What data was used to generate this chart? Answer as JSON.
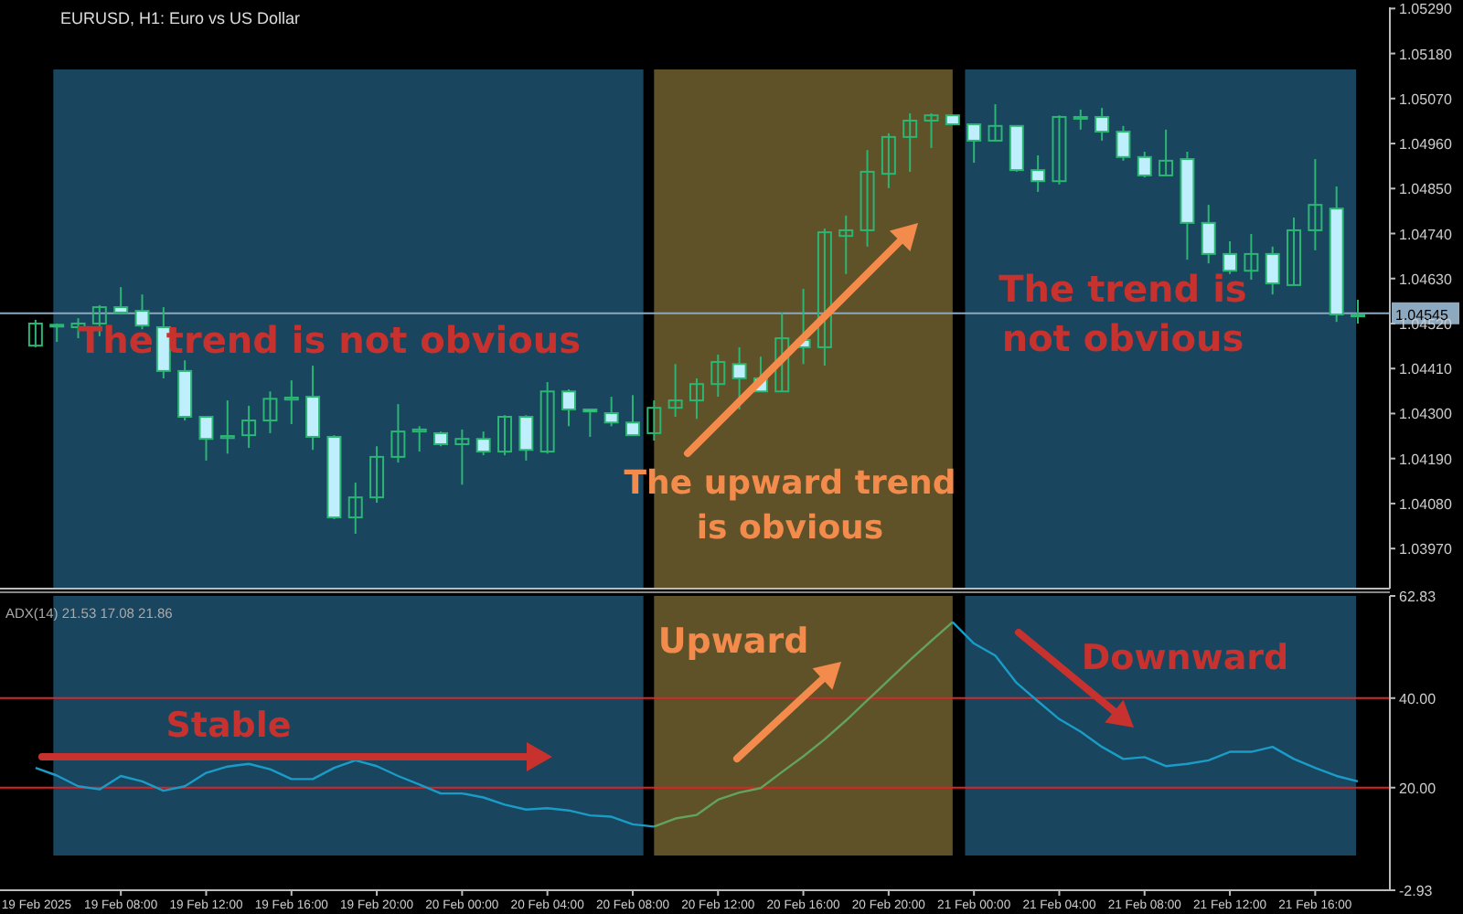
{
  "chart_data": [
    {
      "type": "candlestick",
      "title": "EURUSD, H1: Euro vs US Dollar",
      "color": "#2bb673",
      "x": [
        "2025-02-19T04:00",
        "2025-02-19T05:00",
        "2025-02-19T06:00",
        "2025-02-19T07:00",
        "2025-02-19T08:00",
        "2025-02-19T09:00",
        "2025-02-19T10:00",
        "2025-02-19T11:00",
        "2025-02-19T12:00",
        "2025-02-19T13:00",
        "2025-02-19T14:00",
        "2025-02-19T15:00",
        "2025-02-19T16:00",
        "2025-02-19T17:00",
        "2025-02-19T18:00",
        "2025-02-19T19:00",
        "2025-02-19T20:00",
        "2025-02-19T21:00",
        "2025-02-19T22:00",
        "2025-02-19T23:00",
        "2025-02-20T00:00",
        "2025-02-20T01:00",
        "2025-02-20T02:00",
        "2025-02-20T03:00",
        "2025-02-20T04:00",
        "2025-02-20T05:00",
        "2025-02-20T06:00",
        "2025-02-20T07:00",
        "2025-02-20T08:00",
        "2025-02-20T09:00",
        "2025-02-20T10:00",
        "2025-02-20T11:00",
        "2025-02-20T12:00",
        "2025-02-20T13:00",
        "2025-02-20T14:00",
        "2025-02-20T15:00",
        "2025-02-20T16:00",
        "2025-02-20T17:00",
        "2025-02-20T18:00",
        "2025-02-20T19:00",
        "2025-02-20T20:00",
        "2025-02-20T21:00",
        "2025-02-20T22:00",
        "2025-02-20T23:00",
        "2025-02-21T00:00",
        "2025-02-21T01:00",
        "2025-02-21T02:00",
        "2025-02-21T03:00",
        "2025-02-21T04:00",
        "2025-02-21T05:00",
        "2025-02-21T06:00",
        "2025-02-21T07:00",
        "2025-02-21T08:00",
        "2025-02-21T09:00",
        "2025-02-21T10:00",
        "2025-02-21T11:00",
        "2025-02-21T12:00",
        "2025-02-21T13:00",
        "2025-02-21T14:00",
        "2025-02-21T15:00",
        "2025-02-21T16:00",
        "2025-02-21T17:00",
        "2025-02-21T18:00"
      ],
      "ohlc": [
        [
          1.04466,
          1.04529,
          1.04462,
          1.0452
        ],
        [
          1.04515,
          1.0452,
          1.04475,
          1.04517
        ],
        [
          1.04511,
          1.04533,
          1.04484,
          1.0452
        ],
        [
          1.0452,
          1.04565,
          1.04489,
          1.0456
        ],
        [
          1.0456,
          1.04609,
          1.04542,
          1.04547
        ],
        [
          1.04551,
          1.04591,
          1.04506,
          1.04515
        ],
        [
          1.04511,
          1.0456,
          1.04386,
          1.04404
        ],
        [
          1.04404,
          1.0443,
          1.04283,
          1.04292
        ],
        [
          1.04292,
          1.04292,
          1.04185,
          1.04238
        ],
        [
          1.0424,
          1.04332,
          1.04202,
          1.04245
        ],
        [
          1.04247,
          1.04319,
          1.04216,
          1.04283
        ],
        [
          1.04283,
          1.04354,
          1.04252,
          1.04336
        ],
        [
          1.04334,
          1.04381,
          1.04274,
          1.04339
        ],
        [
          1.04341,
          1.04417,
          1.04211,
          1.04243
        ],
        [
          1.04243,
          1.04247,
          1.04042,
          1.04046
        ],
        [
          1.04046,
          1.04131,
          1.04006,
          1.04095
        ],
        [
          1.04095,
          1.0422,
          1.04082,
          1.04194
        ],
        [
          1.04194,
          1.04323,
          1.0418,
          1.04256
        ],
        [
          1.04256,
          1.04269,
          1.04207,
          1.04261
        ],
        [
          1.04252,
          1.04256,
          1.0422,
          1.04225
        ],
        [
          1.04225,
          1.04261,
          1.04126,
          1.04238
        ],
        [
          1.04238,
          1.04256,
          1.04198,
          1.04207
        ],
        [
          1.04207,
          1.04296,
          1.04198,
          1.04292
        ],
        [
          1.04292,
          1.04296,
          1.04185,
          1.04211
        ],
        [
          1.04207,
          1.04377,
          1.04202,
          1.04354
        ],
        [
          1.04354,
          1.04359,
          1.04269,
          1.0431
        ],
        [
          1.0431,
          1.0431,
          1.04243,
          1.04305
        ],
        [
          1.04301,
          1.04341,
          1.04269,
          1.04278
        ],
        [
          1.04278,
          1.04345,
          1.04247,
          1.04247
        ],
        [
          1.04252,
          1.04332,
          1.04234,
          1.04314
        ],
        [
          1.04314,
          1.04421,
          1.04292,
          1.04332
        ],
        [
          1.04332,
          1.04386,
          1.04287,
          1.04372
        ],
        [
          1.04372,
          1.04444,
          1.04341,
          1.04426
        ],
        [
          1.04421,
          1.04462,
          1.0431,
          1.04386
        ],
        [
          1.04386,
          1.04439,
          1.04354,
          1.04354
        ],
        [
          1.04354,
          1.04547,
          1.04354,
          1.04484
        ],
        [
          1.0448,
          1.04605,
          1.04421,
          1.04462
        ],
        [
          1.04462,
          1.04752,
          1.04417,
          1.04743
        ],
        [
          1.04734,
          1.04784,
          1.04641,
          1.04748
        ],
        [
          1.04748,
          1.04944,
          1.04708,
          1.04891
        ],
        [
          1.04886,
          1.04985,
          1.04851,
          1.04976
        ],
        [
          1.04976,
          1.05034,
          1.04891,
          1.05016
        ],
        [
          1.05016,
          1.05034,
          1.04949,
          1.05029
        ],
        [
          1.05029,
          1.05029,
          1.05007,
          1.05007
        ],
        [
          1.05007,
          1.05007,
          1.04913,
          1.04967
        ],
        [
          1.04967,
          1.05056,
          1.04967,
          1.05003
        ],
        [
          1.05003,
          1.05003,
          1.04891,
          1.04895
        ],
        [
          1.04895,
          1.04931,
          1.04842,
          1.04868
        ],
        [
          1.04868,
          1.05029,
          1.0486,
          1.05025
        ],
        [
          1.05023,
          1.05043,
          1.04994,
          1.05025
        ],
        [
          1.05025,
          1.05047,
          1.04967,
          1.04989
        ],
        [
          1.04989,
          1.05003,
          1.04918,
          1.04927
        ],
        [
          1.04927,
          1.0494,
          1.04877,
          1.04882
        ],
        [
          1.04882,
          1.04994,
          1.04882,
          1.04918
        ],
        [
          1.04922,
          1.0494,
          1.04676,
          1.04766
        ],
        [
          1.04766,
          1.0481,
          1.04667,
          1.0469
        ],
        [
          1.0469,
          1.04721,
          1.04641,
          1.04649
        ],
        [
          1.04649,
          1.04739,
          1.04627,
          1.0469
        ],
        [
          1.0469,
          1.04708,
          1.04591,
          1.04618
        ],
        [
          1.04614,
          1.04779,
          1.04614,
          1.04748
        ],
        [
          1.04748,
          1.04922,
          1.04699,
          1.0481
        ],
        [
          1.04801,
          1.04855,
          1.04524,
          1.04542
        ],
        [
          1.0454,
          1.04578,
          1.0452,
          1.04542
        ]
      ],
      "xlim": [
        "2025-02-19T02:20",
        "2025-02-21T19:30"
      ],
      "ylim": [
        1.03872,
        1.05293
      ],
      "yticks": [
        {
          "value": 1.0529,
          "label": "1.05290"
        },
        {
          "value": 1.0518,
          "label": "1.05180"
        },
        {
          "value": 1.0507,
          "label": "1.05070"
        },
        {
          "value": 1.0496,
          "label": "1.04960"
        },
        {
          "value": 1.0485,
          "label": "1.04850"
        },
        {
          "value": 1.0474,
          "label": "1.04740"
        },
        {
          "value": 1.0463,
          "label": "1.04630"
        },
        {
          "value": 1.0452,
          "label": "1.04520"
        },
        {
          "value": 1.0441,
          "label": "1.04410"
        },
        {
          "value": 1.043,
          "label": "1.04300"
        },
        {
          "value": 1.0419,
          "label": "1.04190"
        },
        {
          "value": 1.0408,
          "label": "1.04080"
        },
        {
          "value": 1.0397,
          "label": "1.03970"
        }
      ],
      "tick_labels": "y",
      "grid": false,
      "ref_lines": [
        {
          "axis": "y",
          "value": 1.04545,
          "label": "1.04545",
          "color": "#8da9bf"
        }
      ],
      "bands": [
        {
          "axis": "x",
          "from": "2025-02-19T04:50",
          "to": "2025-02-20T08:30",
          "color": "#19455f"
        },
        {
          "axis": "x",
          "from": "2025-02-20T09:00",
          "to": "2025-02-20T23:00",
          "color": "#5f5229"
        },
        {
          "axis": "x",
          "from": "2025-02-20T23:35",
          "to": "2025-02-21T17:55",
          "color": "#19455f"
        }
      ],
      "annotations": [
        "The trend is not obvious",
        "The upward trend is obvious",
        "The trend is not obvious"
      ]
    },
    {
      "type": "line",
      "title": "ADX(14) 21.53 17.08 21.86",
      "x": [
        "2025-02-19T04:00",
        "2025-02-19T05:00",
        "2025-02-19T06:00",
        "2025-02-19T07:00",
        "2025-02-19T08:00",
        "2025-02-19T09:00",
        "2025-02-19T10:00",
        "2025-02-19T11:00",
        "2025-02-19T12:00",
        "2025-02-19T13:00",
        "2025-02-19T14:00",
        "2025-02-19T15:00",
        "2025-02-19T16:00",
        "2025-02-19T17:00",
        "2025-02-19T18:00",
        "2025-02-19T19:00",
        "2025-02-19T20:00",
        "2025-02-19T21:00",
        "2025-02-19T22:00",
        "2025-02-19T23:00",
        "2025-02-20T00:00",
        "2025-02-20T01:00",
        "2025-02-20T02:00",
        "2025-02-20T03:00",
        "2025-02-20T04:00",
        "2025-02-20T05:00",
        "2025-02-20T06:00",
        "2025-02-20T07:00",
        "2025-02-20T08:00",
        "2025-02-20T09:00",
        "2025-02-20T10:00",
        "2025-02-20T11:00",
        "2025-02-20T12:00",
        "2025-02-20T13:00",
        "2025-02-20T14:00",
        "2025-02-20T15:00",
        "2025-02-20T16:00",
        "2025-02-20T17:00",
        "2025-02-20T18:00",
        "2025-02-20T19:00",
        "2025-02-20T20:00",
        "2025-02-20T21:00",
        "2025-02-20T22:00",
        "2025-02-20T23:00",
        "2025-02-21T00:00",
        "2025-02-21T01:00",
        "2025-02-21T02:00",
        "2025-02-21T03:00",
        "2025-02-21T04:00",
        "2025-02-21T05:00",
        "2025-02-21T06:00",
        "2025-02-21T07:00",
        "2025-02-21T08:00",
        "2025-02-21T09:00",
        "2025-02-21T10:00",
        "2025-02-21T11:00",
        "2025-02-21T12:00",
        "2025-02-21T13:00",
        "2025-02-21T14:00",
        "2025-02-21T15:00",
        "2025-02-21T16:00",
        "2025-02-21T17:00",
        "2025-02-21T18:00"
      ],
      "series": [
        {
          "color": "#1b9cc6",
          "values": [
            24.4,
            22.7,
            20.3,
            19.6,
            22.6,
            21.4,
            19.3,
            20.3,
            23.3,
            24.7,
            25.3,
            24.1,
            21.9,
            21.9,
            24.4,
            26.1,
            24.8,
            22.6,
            20.7,
            18.7,
            18.7,
            17.8,
            16.2,
            15.1,
            15.4,
            14.9,
            13.8,
            13.5,
            11.8,
            11.3,
            null,
            null,
            null,
            null,
            null,
            null,
            null,
            null,
            null,
            null,
            null,
            null,
            null,
            null,
            null,
            null,
            null,
            null,
            null,
            null,
            null,
            null,
            null,
            null,
            null,
            null,
            null,
            null,
            null,
            null,
            null,
            null,
            null
          ]
        },
        {
          "color": "#63a35c",
          "values": [
            null,
            null,
            null,
            null,
            null,
            null,
            null,
            null,
            null,
            null,
            null,
            null,
            null,
            null,
            null,
            null,
            null,
            null,
            null,
            null,
            null,
            null,
            null,
            null,
            null,
            null,
            null,
            null,
            null,
            11.3,
            13.1,
            13.9,
            17.3,
            18.9,
            19.9,
            23.5,
            27.0,
            30.8,
            35.0,
            39.5,
            44.0,
            48.5,
            52.8,
            57.0,
            null,
            null,
            null,
            null,
            null,
            null,
            null,
            null,
            null,
            null,
            null,
            null,
            null,
            null,
            null,
            null,
            null,
            null,
            null
          ]
        },
        {
          "color": "#1b9cc6",
          "values": [
            null,
            null,
            null,
            null,
            null,
            null,
            null,
            null,
            null,
            null,
            null,
            null,
            null,
            null,
            null,
            null,
            null,
            null,
            null,
            null,
            null,
            null,
            null,
            null,
            null,
            null,
            null,
            null,
            null,
            null,
            null,
            null,
            null,
            null,
            null,
            null,
            null,
            null,
            null,
            null,
            null,
            null,
            null,
            57.0,
            52.2,
            49.5,
            43.4,
            39.3,
            35.3,
            32.5,
            29.1,
            26.4,
            26.8,
            24.8,
            25.3,
            26.1,
            28.0,
            28.0,
            29.1,
            26.4,
            24.4,
            22.6,
            21.4
          ]
        }
      ],
      "xlim": [
        "2025-02-19T02:20",
        "2025-02-21T19:30"
      ],
      "xticks": [
        {
          "value": "2025-02-19T08:00",
          "label": "19 Feb 08:00"
        },
        {
          "value": "2025-02-19T12:00",
          "label": "19 Feb 12:00"
        },
        {
          "value": "2025-02-19T16:00",
          "label": "19 Feb 16:00"
        },
        {
          "value": "2025-02-19T20:00",
          "label": "19 Feb 20:00"
        },
        {
          "value": "2025-02-20T00:00",
          "label": "20 Feb 00:00"
        },
        {
          "value": "2025-02-20T04:00",
          "label": "20 Feb 04:00"
        },
        {
          "value": "2025-02-20T08:00",
          "label": "20 Feb 08:00"
        },
        {
          "value": "2025-02-20T12:00",
          "label": "20 Feb 12:00"
        },
        {
          "value": "2025-02-20T16:00",
          "label": "20 Feb 16:00"
        },
        {
          "value": "2025-02-20T20:00",
          "label": "20 Feb 20:00"
        },
        {
          "value": "2025-02-21T00:00",
          "label": "21 Feb 00:00"
        },
        {
          "value": "2025-02-21T04:00",
          "label": "21 Feb 04:00"
        },
        {
          "value": "2025-02-21T08:00",
          "label": "21 Feb 08:00"
        },
        {
          "value": "2025-02-21T12:00",
          "label": "21 Feb 12:00"
        },
        {
          "value": "2025-02-21T16:00",
          "label": "21 Feb 16:00"
        }
      ],
      "ylim": [
        -2.93,
        62.83
      ],
      "yticks": [
        62.83,
        {
          "value": 40,
          "label": "40.00"
        },
        {
          "value": 20,
          "label": "20.00"
        },
        -2.93
      ],
      "grid": false,
      "marker": "none",
      "line_style": "solid",
      "ref_lines": [
        {
          "axis": "y",
          "value": 40,
          "color": "#d42a2a"
        },
        {
          "axis": "y",
          "value": 20,
          "color": "#e32020"
        }
      ],
      "bands": [
        {
          "axis": "x",
          "from": "2025-02-19T04:50",
          "to": "2025-02-20T08:30",
          "color": "#19455f"
        },
        {
          "axis": "x",
          "from": "2025-02-20T09:00",
          "to": "2025-02-20T23:00",
          "color": "#5f5229"
        },
        {
          "axis": "x",
          "from": "2025-02-20T23:35",
          "to": "2025-02-21T17:55",
          "color": "#19455f"
        }
      ],
      "annotations": [
        "Stable",
        "Upward",
        "Downward",
        "19 Feb 2025"
      ]
    }
  ]
}
